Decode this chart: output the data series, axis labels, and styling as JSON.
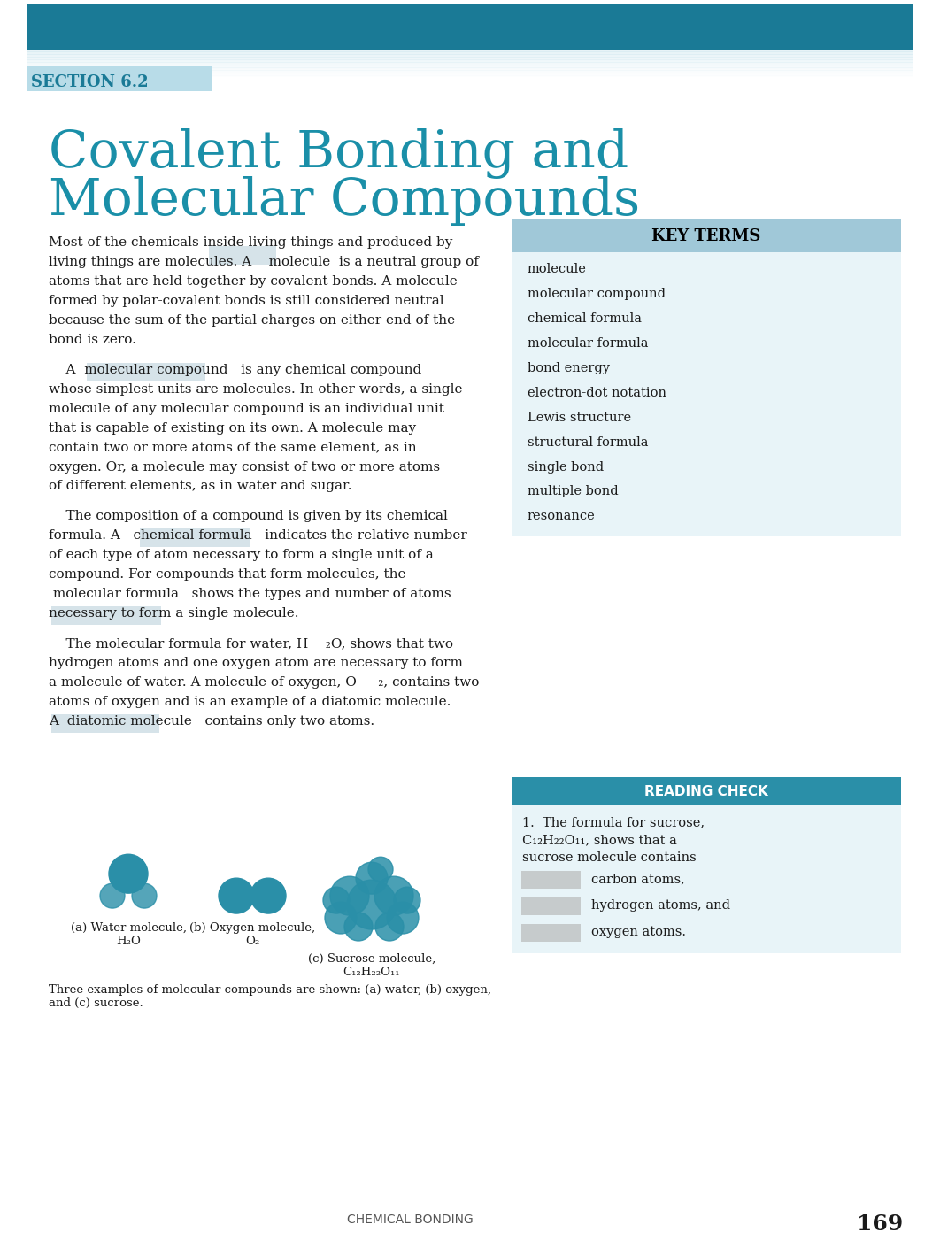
{
  "page_bg": "#ffffff",
  "header_bar_color": "#1a7a96",
  "header_bar_light": "#d0e8f0",
  "section_label": "SECTION 6.2",
  "section_label_color": "#1a7a96",
  "section_bg": "#b8dce8",
  "title_line1": "Covalent Bonding and",
  "title_line2": "Molecular Compounds",
  "title_color": "#1a8fa8",
  "body_color": "#1a1a1a",
  "key_terms_header": "KEY TERMS",
  "key_terms_bg": "#a0c8d8",
  "key_terms_header_color": "#1a1a1a",
  "key_terms": [
    "molecule",
    "molecular compound",
    "chemical formula",
    "molecular formula",
    "bond energy",
    "electron-dot notation",
    "Lewis structure",
    "structural formula",
    "single bond",
    "multiple bond",
    "resonance"
  ],
  "reading_check_header": "READING CHECK",
  "reading_check_bg": "#2a8fa8",
  "paragraph1_lines": [
    "Most of the chemicals inside living things and produced by",
    "living things are molecules. A    molecule  is a neutral group of",
    "atoms that are held together by covalent bonds. A molecule",
    "formed by polar-covalent bonds is still considered neutral",
    "because the sum of the partial charges on either end of the",
    "bond is zero."
  ],
  "paragraph2_lines": [
    "    A  molecular compound   is any chemical compound",
    "whose simplest units are molecules. In other words, a single",
    "molecule of any molecular compound is an individual unit",
    "that is capable of existing on its own. A molecule may",
    "contain two or more atoms of the same element, as in",
    "oxygen. Or, a molecule may consist of two or more atoms",
    "of different elements, as in water and sugar."
  ],
  "paragraph3_lines": [
    "    The composition of a compound is given by its chemical",
    "formula. A   chemical formula   indicates the relative number",
    "of each type of atom necessary to form a single unit of a",
    "compound. For compounds that form molecules, the",
    " molecular formula   shows the types and number of atoms",
    "necessary to form a single molecule."
  ],
  "paragraph4_lines": [
    "    The molecular formula for water, H    ₂O, shows that two",
    "hydrogen atoms and one oxygen atom are necessary to form",
    "a molecule of water. A molecule of oxygen, O     ₂, contains two",
    "atoms of oxygen and is an example of a diatomic molecule.",
    "A  diatomic molecule   contains only two atoms."
  ],
  "figure_caption": "Three examples of molecular compounds are shown: (a) water, (b) oxygen,\nand (c) sucrose.",
  "fig_label_a": "(a) Water molecule,\nH₂O",
  "fig_label_b": "(b) Oxygen molecule,\nO₂",
  "fig_label_c": "(c) Sucrose molecule,\nC₁₂H₂₂O₁₁",
  "footer_text": "CHEMICAL BONDING",
  "footer_page": "169",
  "molecule_color": "#2a8fa8",
  "highlight_color": "#c5d8e0",
  "rc_text1": "1.  The formula for sucrose,",
  "rc_text2": "C₁₂H₂₂O₁₁, shows that a",
  "rc_text3": "sucrose molecule contains",
  "rc_blanks": [
    "carbon atoms,",
    "hydrogen atoms, and",
    "oxygen atoms."
  ]
}
